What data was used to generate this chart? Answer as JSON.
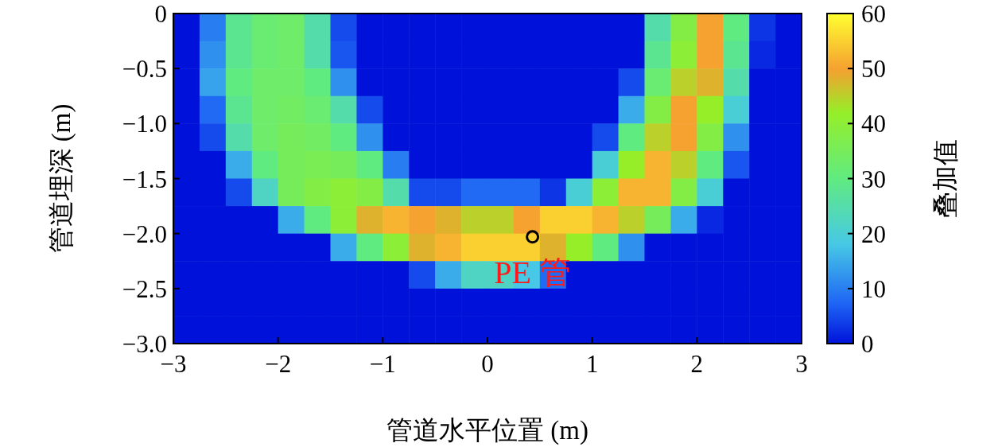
{
  "chart_data": {
    "type": "heatmap",
    "xlabel": "管道水平位置 (m)",
    "ylabel": "管道埋深 (m)",
    "clabel": "叠加值",
    "x": [
      -2.875,
      -2.625,
      -2.375,
      -2.125,
      -1.875,
      -1.625,
      -1.375,
      -1.125,
      -0.875,
      -0.625,
      -0.375,
      -0.125,
      0.125,
      0.375,
      0.625,
      0.875,
      1.125,
      1.375,
      1.625,
      1.875,
      2.125,
      2.375,
      2.625,
      2.875
    ],
    "y": [
      -0.125,
      -0.375,
      -0.625,
      -0.875,
      -1.125,
      -1.375,
      -1.625,
      -1.875,
      -2.125,
      -2.375,
      -2.625,
      -2.875
    ],
    "xlim": [
      -3,
      3
    ],
    "ylim": [
      -3,
      0
    ],
    "xticks": [
      {
        "value": -3,
        "label": "−3"
      },
      {
        "value": -2,
        "label": "−2"
      },
      {
        "value": -1,
        "label": "−1"
      },
      0,
      1,
      2,
      3
    ],
    "yticks": [
      0,
      {
        "value": -0.5,
        "label": "−0.5"
      },
      {
        "value": -1,
        "label": "−1.0"
      },
      {
        "value": -1.5,
        "label": "−1.5"
      },
      {
        "value": -2,
        "label": "−2.0"
      },
      {
        "value": -2.5,
        "label": "−2.5"
      },
      {
        "value": -3,
        "label": "−3.0"
      }
    ],
    "clim": [
      0,
      60
    ],
    "cticks": [
      0,
      10,
      20,
      30,
      40,
      50,
      60
    ],
    "cells": [
      [
        0,
        10,
        28,
        32,
        33,
        25,
        5,
        0,
        0,
        0,
        0,
        0,
        0,
        0,
        0,
        0,
        0,
        0,
        25,
        38,
        50,
        30,
        3,
        0
      ],
      [
        0,
        12,
        28,
        32,
        33,
        25,
        6,
        0,
        0,
        0,
        0,
        0,
        0,
        0,
        0,
        0,
        0,
        0,
        28,
        40,
        50,
        28,
        2,
        0
      ],
      [
        0,
        14,
        30,
        33,
        33,
        30,
        12,
        0,
        0,
        0,
        0,
        0,
        0,
        0,
        0,
        0,
        0,
        5,
        32,
        45,
        48,
        25,
        0,
        0
      ],
      [
        0,
        8,
        28,
        33,
        34,
        32,
        25,
        5,
        0,
        0,
        0,
        0,
        0,
        0,
        0,
        0,
        0,
        15,
        38,
        50,
        42,
        20,
        0,
        0
      ],
      [
        0,
        5,
        25,
        33,
        35,
        34,
        30,
        12,
        0,
        0,
        0,
        0,
        0,
        0,
        0,
        0,
        5,
        30,
        45,
        50,
        38,
        12,
        0,
        0
      ],
      [
        0,
        0,
        15,
        30,
        35,
        36,
        35,
        30,
        10,
        0,
        0,
        0,
        0,
        0,
        0,
        0,
        20,
        42,
        52,
        45,
        30,
        6,
        0,
        0
      ],
      [
        0,
        0,
        5,
        22,
        35,
        38,
        40,
        38,
        25,
        5,
        5,
        8,
        8,
        8,
        3,
        20,
        40,
        52,
        52,
        38,
        20,
        0,
        0,
        0
      ],
      [
        0,
        0,
        0,
        0,
        15,
        30,
        40,
        48,
        52,
        50,
        48,
        45,
        45,
        50,
        55,
        55,
        52,
        45,
        35,
        15,
        2,
        0,
        0,
        0
      ],
      [
        0,
        0,
        0,
        0,
        0,
        0,
        15,
        30,
        40,
        48,
        52,
        55,
        55,
        55,
        48,
        42,
        30,
        12,
        0,
        0,
        0,
        0,
        0,
        0
      ],
      [
        0,
        0,
        0,
        0,
        0,
        0,
        0,
        0,
        0,
        5,
        15,
        22,
        22,
        18,
        8,
        0,
        0,
        0,
        0,
        0,
        0,
        0,
        0,
        0
      ],
      [
        0,
        0,
        0,
        0,
        0,
        0,
        0,
        0,
        0,
        0,
        0,
        0,
        0,
        0,
        0,
        0,
        0,
        0,
        0,
        0,
        0,
        0,
        0,
        0
      ],
      [
        0,
        0,
        0,
        0,
        0,
        0,
        0,
        0,
        0,
        0,
        0,
        0,
        0,
        0,
        0,
        0,
        0,
        0,
        0,
        0,
        0,
        0,
        0,
        0
      ]
    ],
    "annotations": [
      {
        "text": "PE 管",
        "x": 0.43,
        "y": -2.03
      }
    ]
  }
}
